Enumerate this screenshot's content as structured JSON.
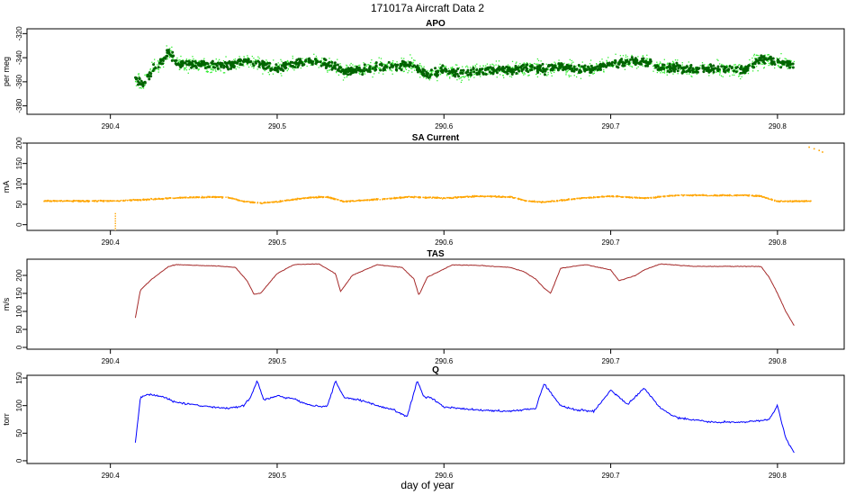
{
  "figure": {
    "title": "171017a   Aircraft Data 2",
    "xlabel": "day of year"
  },
  "colors": {
    "apo_light": "#33ee33",
    "apo_dark": "#006400",
    "sa_current": "#ffa500",
    "tas": "#a52a2a",
    "q": "#0000ff"
  },
  "chart_data": [
    {
      "type": "scatter",
      "title": "APO",
      "xlabel": "",
      "ylabel": "per meg",
      "xlim": [
        290.35,
        290.84
      ],
      "ylim": [
        -387,
        -316
      ],
      "xticks": [
        "290.4",
        "290.5",
        "290.6",
        "290.7",
        "290.8"
      ],
      "yticks": [
        "-320",
        "-340",
        "-360",
        "-380"
      ],
      "yticks_rotated": true,
      "x": [
        290.415,
        290.42,
        290.425,
        290.43,
        290.435,
        290.44,
        290.45,
        290.46,
        290.47,
        290.48,
        290.49,
        290.5,
        290.51,
        290.52,
        290.53,
        290.54,
        290.55,
        290.56,
        290.57,
        290.58,
        290.59,
        290.6,
        290.61,
        290.62,
        290.63,
        290.64,
        290.65,
        290.66,
        290.67,
        290.68,
        290.69,
        290.7,
        290.71,
        290.72,
        290.73,
        290.74,
        290.75,
        290.76,
        290.77,
        290.78,
        290.79,
        290.8,
        290.81
      ],
      "y": [
        -357,
        -362,
        -350,
        -345,
        -335,
        -345,
        -345,
        -346,
        -347,
        -342,
        -345,
        -350,
        -345,
        -343,
        -345,
        -352,
        -350,
        -348,
        -347,
        -345,
        -355,
        -350,
        -353,
        -352,
        -350,
        -350,
        -348,
        -350,
        -347,
        -350,
        -349,
        -345,
        -343,
        -343,
        -349,
        -348,
        -350,
        -349,
        -350,
        -350,
        -341,
        -343,
        -345
      ]
    },
    {
      "type": "scatter",
      "title": "SA Current",
      "xlabel": "",
      "ylabel": "mA",
      "xlim": [
        290.35,
        290.84
      ],
      "ylim": [
        -14,
        200
      ],
      "xticks": [
        "290.4",
        "290.5",
        "290.6",
        "290.7",
        "290.8"
      ],
      "yticks": [
        "0",
        "50",
        "100",
        "150",
        "200"
      ],
      "x": [
        290.36,
        290.38,
        290.4,
        290.42,
        290.44,
        290.46,
        290.47,
        290.48,
        290.49,
        290.5,
        290.51,
        290.52,
        290.53,
        290.54,
        290.56,
        290.58,
        290.6,
        290.62,
        290.64,
        290.65,
        290.66,
        290.68,
        290.7,
        290.72,
        290.74,
        290.76,
        290.78,
        290.79,
        290.8,
        290.82
      ],
      "y": [
        58,
        58,
        58,
        61,
        66,
        68,
        67,
        57,
        53,
        56,
        62,
        67,
        68,
        57,
        62,
        68,
        65,
        70,
        68,
        58,
        55,
        64,
        70,
        65,
        72,
        72,
        72,
        70,
        57,
        58
      ],
      "outliers": [
        [
          290.403,
          -15
        ],
        [
          290.819,
          190
        ],
        [
          290.822,
          186
        ],
        [
          290.825,
          182
        ],
        [
          290.827,
          178
        ]
      ]
    },
    {
      "type": "line",
      "title": "TAS",
      "xlabel": "",
      "ylabel": "m/s",
      "xlim": [
        290.35,
        290.84
      ],
      "ylim": [
        -5,
        245
      ],
      "xticks": [
        "290.4",
        "290.5",
        "290.6",
        "290.7",
        "290.8"
      ],
      "yticks": [
        "0",
        "50",
        "100",
        "150",
        "200"
      ],
      "x": [
        290.415,
        290.418,
        290.425,
        290.435,
        290.44,
        290.45,
        290.465,
        290.475,
        290.482,
        290.486,
        290.49,
        290.5,
        290.51,
        290.525,
        290.535,
        290.538,
        290.545,
        290.56,
        290.575,
        290.582,
        290.585,
        290.59,
        290.605,
        290.62,
        290.64,
        290.648,
        290.655,
        290.66,
        290.664,
        290.67,
        290.685,
        290.7,
        290.705,
        290.715,
        290.72,
        290.73,
        290.75,
        290.77,
        290.79,
        290.795,
        290.8,
        290.805,
        290.81
      ],
      "y": [
        82,
        160,
        190,
        225,
        230,
        228,
        226,
        222,
        185,
        148,
        150,
        205,
        230,
        232,
        205,
        155,
        200,
        230,
        222,
        190,
        145,
        195,
        229,
        228,
        222,
        210,
        190,
        165,
        150,
        220,
        230,
        215,
        185,
        200,
        215,
        232,
        225,
        225,
        225,
        195,
        150,
        100,
        60
      ]
    },
    {
      "type": "line",
      "title": "Q",
      "xlabel": "",
      "ylabel": "torr",
      "xlim": [
        290.35,
        290.84
      ],
      "ylim": [
        -5,
        155
      ],
      "xticks": [
        "290.4",
        "290.5",
        "290.6",
        "290.7",
        "290.8"
      ],
      "yticks": [
        "0",
        "50",
        "100",
        "150"
      ],
      "x": [
        290.415,
        290.418,
        290.422,
        290.43,
        290.44,
        290.46,
        290.47,
        290.48,
        290.484,
        290.488,
        290.492,
        290.5,
        290.51,
        290.52,
        290.53,
        290.535,
        290.54,
        290.55,
        290.56,
        290.57,
        290.578,
        290.584,
        290.588,
        290.592,
        290.6,
        290.62,
        290.64,
        290.655,
        290.66,
        290.665,
        290.67,
        290.68,
        290.69,
        290.7,
        290.71,
        290.72,
        290.73,
        290.74,
        290.76,
        290.78,
        290.795,
        290.8,
        290.805,
        290.81
      ],
      "y": [
        33,
        115,
        120,
        118,
        105,
        98,
        95,
        100,
        115,
        145,
        110,
        118,
        112,
        100,
        98,
        145,
        115,
        110,
        100,
        92,
        80,
        145,
        115,
        115,
        98,
        92,
        90,
        95,
        140,
        120,
        100,
        92,
        90,
        128,
        102,
        132,
        95,
        78,
        70,
        70,
        75,
        100,
        40,
        15
      ]
    }
  ]
}
